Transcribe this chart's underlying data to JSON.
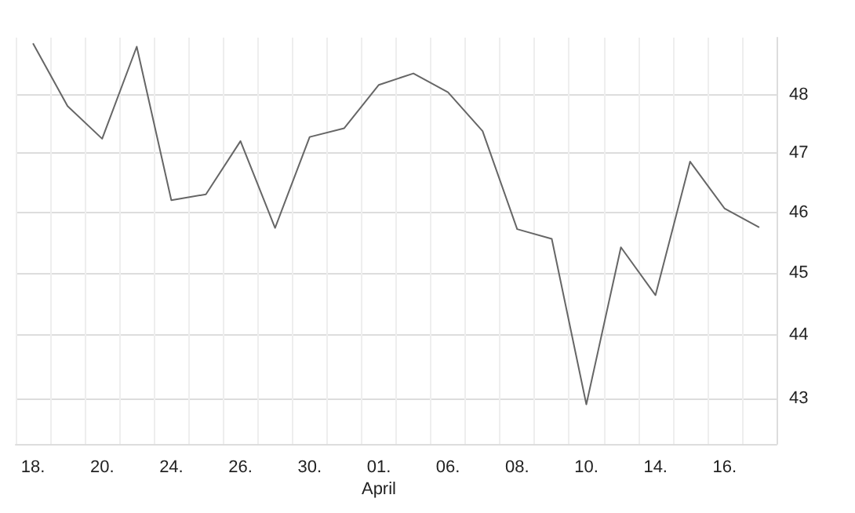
{
  "chart_data": {
    "type": "line",
    "categories": [
      "18.",
      null,
      "20.",
      null,
      "24.",
      null,
      "26.",
      null,
      "30.",
      null,
      "01.\nApril",
      null,
      "06.",
      null,
      "08.",
      null,
      "10.",
      null,
      "14.",
      null,
      "16.",
      null
    ],
    "series": [
      {
        "color": "#666666",
        "values": [
          48.9,
          47.8,
          47.24,
          48.84,
          46.2,
          46.3,
          47.2,
          45.74,
          47.27,
          47.42,
          48.17,
          48.37,
          48.04,
          47.37,
          45.72,
          45.56,
          42.91,
          45.42,
          44.64,
          46.85,
          46.06,
          45.75
        ]
      }
    ],
    "ylim": [
      42.3,
      49
    ],
    "yticks": [
      43,
      44,
      45,
      46,
      47,
      48
    ],
    "log": true,
    "grid": true,
    "marker": "none",
    "line_style": "solid"
  }
}
